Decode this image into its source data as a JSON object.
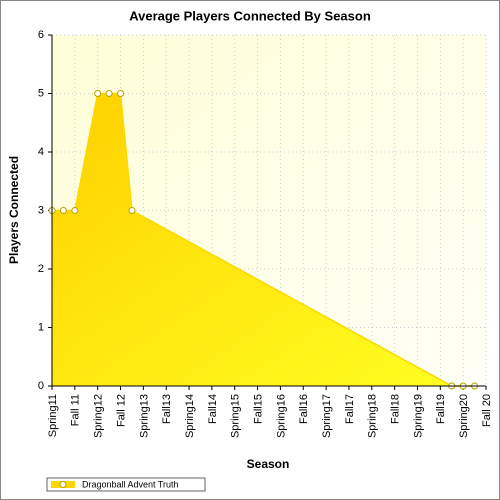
{
  "chart_data": {
    "type": "area",
    "title": "Average Players Connected By Season",
    "x_label": "Season",
    "y_label": "Players Connected",
    "x": [
      0,
      1,
      2,
      4,
      5,
      6,
      7,
      35,
      36,
      37
    ],
    "series": [
      {
        "name": "Dragonball Advent Truth",
        "color": "#ffd700",
        "values": [
          3,
          3,
          3,
          5,
          5,
          5,
          3,
          0,
          0,
          0
        ]
      }
    ],
    "xlim": [
      0,
      38
    ],
    "xticks": [
      {
        "value": 0,
        "label": "Spring11"
      },
      {
        "value": 2,
        "label": "Fall 11"
      },
      {
        "value": 4,
        "label": "Spring12"
      },
      {
        "value": 6,
        "label": "Fall 12"
      },
      {
        "value": 8,
        "label": "Spring13"
      },
      {
        "value": 10,
        "label": "Fall13"
      },
      {
        "value": 12,
        "label": "Spring14"
      },
      {
        "value": 14,
        "label": "Fall14"
      },
      {
        "value": 16,
        "label": "Spring15"
      },
      {
        "value": 18,
        "label": "Fall15"
      },
      {
        "value": 20,
        "label": "Spring16"
      },
      {
        "value": 22,
        "label": "Fall16"
      },
      {
        "value": 24,
        "label": "Spring17"
      },
      {
        "value": 26,
        "label": "Fall17"
      },
      {
        "value": 28,
        "label": "Spring18"
      },
      {
        "value": 30,
        "label": "Fall18"
      },
      {
        "value": 32,
        "label": "Spring19"
      },
      {
        "value": 34,
        "label": "Fall19"
      },
      {
        "value": 36,
        "label": "Spring20"
      },
      {
        "value": 38,
        "label": "Fall 20"
      }
    ],
    "ylim": [
      0,
      6
    ],
    "yticks": [
      0,
      1,
      2,
      3,
      4,
      5,
      6
    ],
    "grid": true,
    "legend": "bottom"
  }
}
